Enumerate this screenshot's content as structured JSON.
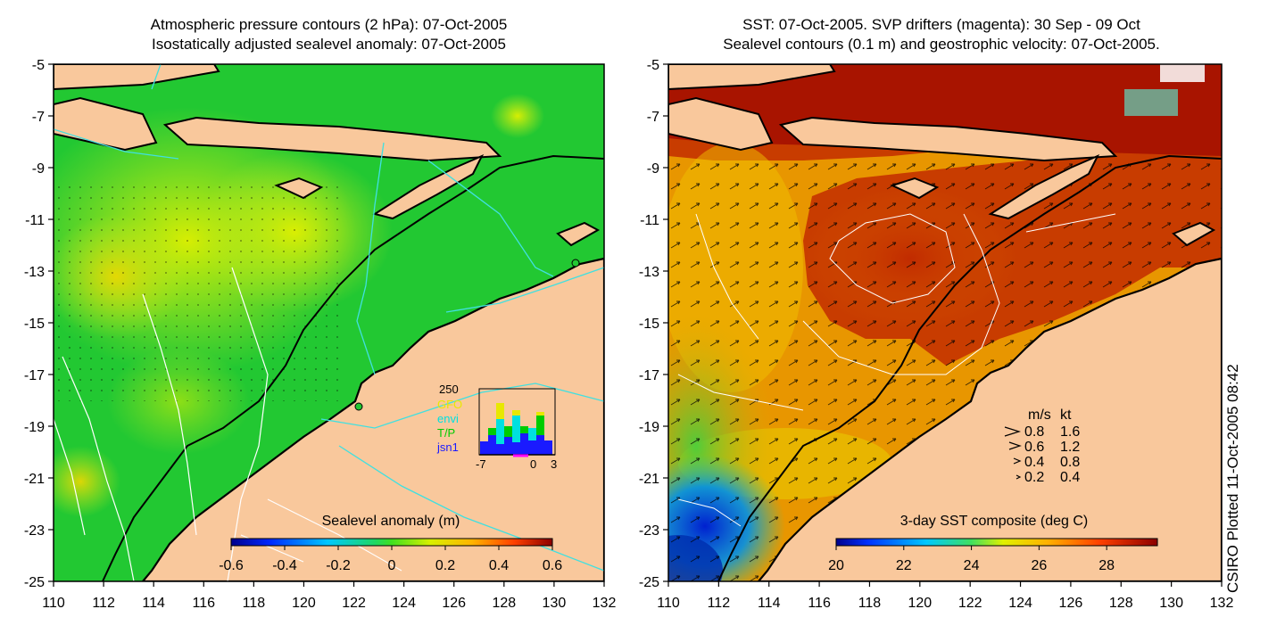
{
  "left_panel": {
    "title_line1": "Atmospheric pressure contours (2 hPa): 07-Oct-2005",
    "title_line2": "Isostatically adjusted sealevel anomaly: 07-Oct-2005",
    "colorbar_label": "Sealevel anomaly (m)",
    "colorbar_ticks": [
      "-0.6",
      "-0.4",
      "-0.2",
      "0",
      "0.2",
      "0.4",
      "0.6"
    ],
    "colorbar_range": [
      -0.6,
      0.6
    ],
    "inset": {
      "ytick": "250",
      "xticks": [
        "-7",
        "0",
        "3"
      ],
      "legend": [
        {
          "label": "GFO",
          "color": "#e8e800"
        },
        {
          "label": "envi",
          "color": "#00e0e0"
        },
        {
          "label": "T/P",
          "color": "#00cc00"
        },
        {
          "label": "jsn1",
          "color": "#1a1aff"
        }
      ]
    }
  },
  "right_panel": {
    "title_line1": "SST: 07-Oct-2005. SVP drifters (magenta): 30 Sep - 09 Oct",
    "title_line2": "Sealevel contours (0.1 m) and geostrophic velocity: 07-Oct-2005.",
    "colorbar_label": "3-day SST composite (deg C)",
    "colorbar_ticks": [
      "20",
      "22",
      "24",
      "26",
      "28"
    ],
    "colorbar_range": [
      20,
      29.5
    ],
    "velocity_legend": {
      "header_ms": "m/s",
      "header_kt": "kt",
      "rows": [
        {
          "ms": "0.8",
          "kt": "1.6"
        },
        {
          "ms": "0.6",
          "kt": "1.2"
        },
        {
          "ms": "0.4",
          "kt": "0.8"
        },
        {
          "ms": "0.2",
          "kt": "0.4"
        }
      ]
    }
  },
  "axes": {
    "lon_ticks": [
      "110",
      "112",
      "114",
      "116",
      "118",
      "120",
      "122",
      "124",
      "126",
      "128",
      "130",
      "132"
    ],
    "lat_ticks": [
      "-5",
      "-7",
      "-9",
      "-11",
      "-13",
      "-15",
      "-17",
      "-19",
      "-21",
      "-23",
      "-25"
    ],
    "lon_range": [
      110,
      132
    ],
    "lat_range": [
      -25,
      -5
    ]
  },
  "credit": "CSIRO Plotted 11-Oct-2005 08:42",
  "colors": {
    "land": "#f9c89c",
    "coast": "#000000",
    "ssh_green": "#22c832",
    "ssh_yellow": "#c8ec1e",
    "sst_red": "#b41e00",
    "sst_orange": "#e89600",
    "contour_cyan": "#40e0e0"
  }
}
